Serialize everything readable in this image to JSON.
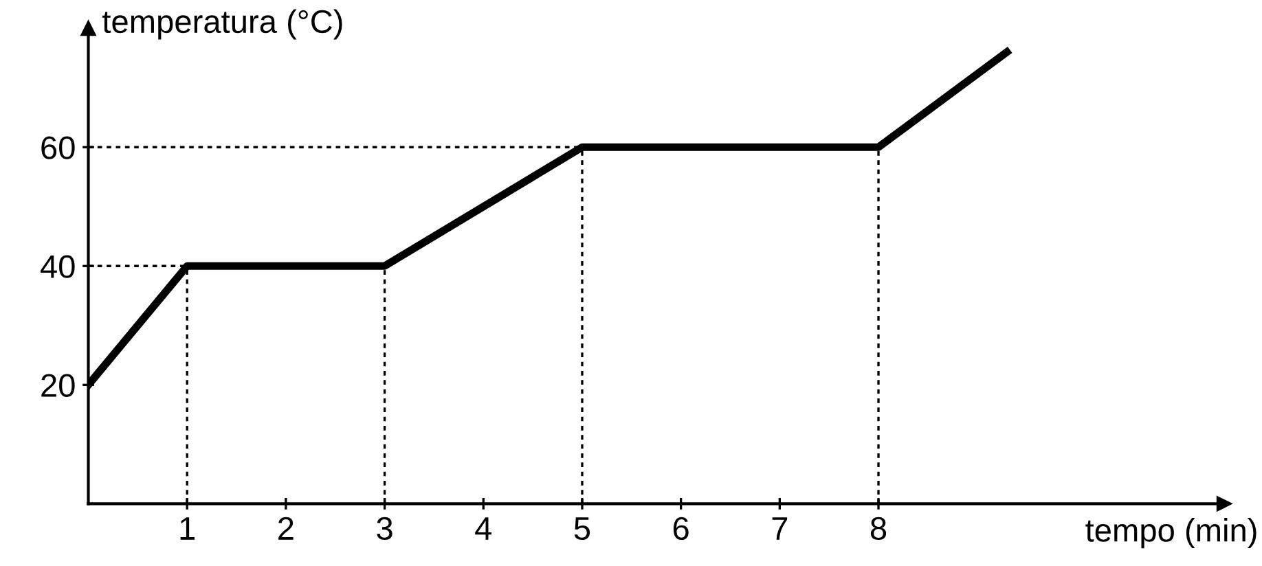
{
  "chart_data": {
    "type": "line",
    "xlabel": "tempo (min)",
    "ylabel": "temperatura (°C)",
    "x": [
      0,
      1,
      3,
      5,
      8,
      9.3
    ],
    "series": [
      {
        "color": "#000000",
        "values": [
          20,
          40,
          40,
          60,
          60,
          76
        ]
      }
    ],
    "xlim": [
      0,
      11.5
    ],
    "ylim": [
      0,
      80
    ],
    "xticks": [
      1,
      2,
      3,
      4,
      5,
      6,
      7,
      8
    ],
    "yticks": [
      20,
      40,
      60
    ],
    "ref_lines": [
      {
        "axis": "y",
        "value": 40,
        "line_style": "dotted",
        "color": "#000000"
      },
      {
        "axis": "y",
        "value": 60,
        "line_style": "dotted",
        "color": "#000000"
      },
      {
        "axis": "x",
        "value": 1,
        "line_style": "dotted",
        "color": "#000000"
      },
      {
        "axis": "x",
        "value": 3,
        "line_style": "dotted",
        "color": "#000000"
      },
      {
        "axis": "x",
        "value": 5,
        "line_style": "dotted",
        "color": "#000000"
      },
      {
        "axis": "x",
        "value": 8,
        "line_style": "dotted",
        "color": "#000000"
      }
    ],
    "grid": false,
    "legend": false,
    "marker": "none",
    "line_style": "solid"
  }
}
